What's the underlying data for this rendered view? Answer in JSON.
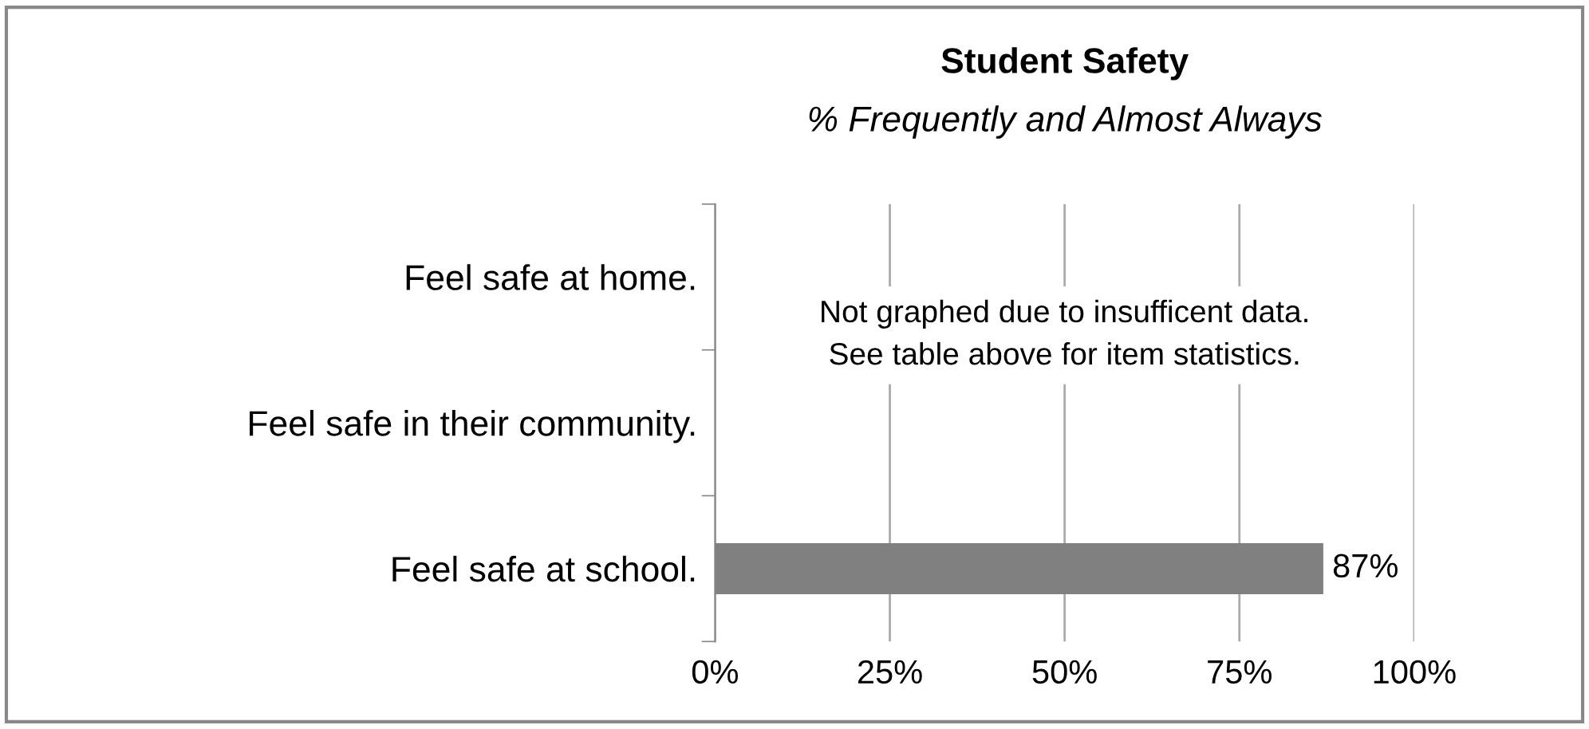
{
  "chart_data": {
    "type": "bar",
    "orientation": "horizontal",
    "title": "Student Safety",
    "subtitle": "% Frequently and Almost Always",
    "categories": [
      "Feel safe at home.",
      "Feel safe in their community.",
      "Feel safe at school."
    ],
    "values": [
      null,
      null,
      87
    ],
    "value_labels": [
      null,
      null,
      "87%"
    ],
    "color": "#808080",
    "xlim": [
      0,
      100
    ],
    "xticks": [
      {
        "value": 0,
        "label": "0%"
      },
      {
        "value": 25,
        "label": "25%"
      },
      {
        "value": 50,
        "label": "50%"
      },
      {
        "value": 75,
        "label": "75%"
      },
      {
        "value": 100,
        "label": "100%"
      }
    ],
    "grid": "x",
    "annotations": [
      "Not graphed due to insufficent data.\nSee table above for item statistics."
    ]
  }
}
